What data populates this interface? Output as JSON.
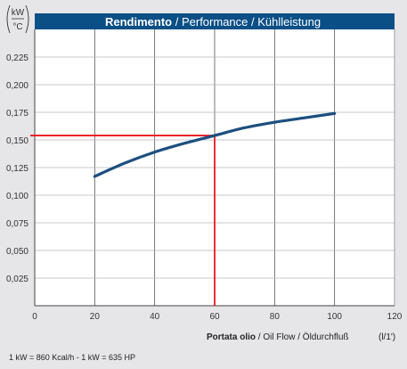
{
  "chart_data": {
    "type": "line",
    "title_bold": "Rendimento",
    "title_rest": " / Performance / Kühlleistung",
    "y_unit_top": "kW",
    "y_unit_bottom": "°C",
    "xlabel_bold": "Portata olio",
    "xlabel_rest": " / Oil Flow / Öldurchfluß",
    "xlabel_unit": "(l/1')",
    "xlim": [
      0,
      120
    ],
    "ylim": [
      0,
      0.25
    ],
    "x_ticks": [
      0,
      20,
      40,
      60,
      80,
      100,
      120
    ],
    "y_ticks": [
      0.025,
      0.05,
      0.075,
      0.1,
      0.125,
      0.15,
      0.175,
      0.2,
      0.225
    ],
    "y_tick_labels": [
      "0,025",
      "0,050",
      "0,075",
      "0,100",
      "0,125",
      "0,150",
      "0,175",
      "0,200",
      "0,225"
    ],
    "series": [
      {
        "x": [
          20,
          30,
          40,
          50,
          60,
          70,
          80,
          90,
          100
        ],
        "y": [
          0.117,
          0.129,
          0.139,
          0.147,
          0.154,
          0.161,
          0.166,
          0.17,
          0.174
        ],
        "color": "#1c4f7f"
      }
    ],
    "reference": {
      "x": 60,
      "y": 0.154,
      "color": "#e8181c"
    },
    "grid": true,
    "header_color": "#0a4f86"
  },
  "footnote": "1 kW = 860 Kcal/h  - 1 kW = 635 HP"
}
